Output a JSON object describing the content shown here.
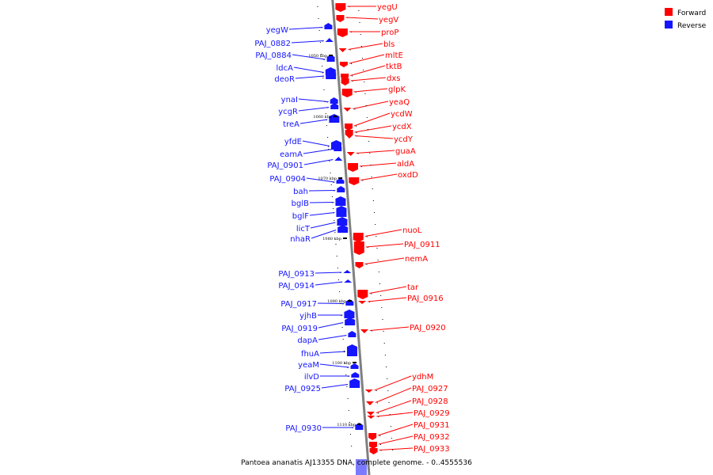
{
  "caption": "Pantoea ananatis AJ13355 DNA, complete genome. - 0..4555536",
  "legend": [
    {
      "label": "Forward",
      "color": "#ff0000"
    },
    {
      "label": "Reverse",
      "color": "#1515ff"
    }
  ],
  "genome_ticks": [
    "1050 kbp",
    "1060 kbp",
    "1070 kbp",
    "1080 kbp",
    "1090 kbp",
    "1100 kbp",
    "1110 kbp"
  ],
  "genes": {
    "forward": [
      "yegU",
      "yegV",
      "proP",
      "bls",
      "mltE",
      "tktB",
      "dxs",
      "glpK",
      "yeaQ",
      "ycdW",
      "ycdX",
      "ycdY",
      "guaA",
      "aldA",
      "oxdD",
      "nuoL",
      "PAJ_0911",
      "nemA",
      "tar",
      "PAJ_0916",
      "PAJ_0920",
      "ydhM",
      "PAJ_0927",
      "PAJ_0928",
      "PAJ_0929",
      "PAJ_0931",
      "PAJ_0932",
      "PAJ_0933"
    ],
    "reverse": [
      "yegW",
      "PAJ_0882",
      "PAJ_0884",
      "ldcA",
      "deoR",
      "ynaI",
      "ycgR",
      "treA",
      "yfdE",
      "eamA",
      "PAJ_0901",
      "PAJ_0904",
      "bah",
      "bglB",
      "bglF",
      "licT",
      "nhaR",
      "PAJ_0913",
      "PAJ_0914",
      "PAJ_0917",
      "yjhB",
      "PAJ_0919",
      "dapA",
      "fhuA",
      "yeaM",
      "ilvD",
      "PAJ_0925",
      "PAJ_0930"
    ]
  },
  "colors": {
    "forward": "#ff0000",
    "reverse": "#1515ff",
    "axis": "#808080"
  }
}
